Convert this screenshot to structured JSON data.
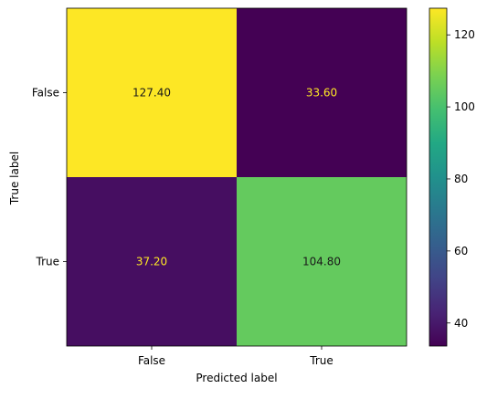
{
  "chart_data": {
    "type": "heatmap",
    "title": "",
    "xlabel": "Predicted label",
    "ylabel": "True label",
    "x_categories": [
      "False",
      "True"
    ],
    "y_categories": [
      "False",
      "True"
    ],
    "values": [
      [
        127.4,
        33.6
      ],
      [
        37.2,
        104.8
      ]
    ],
    "value_labels": [
      [
        "127.40",
        "33.60"
      ],
      [
        "37.20",
        "104.80"
      ]
    ],
    "colormap": "viridis",
    "colorbar": {
      "range": [
        33.6,
        127.4
      ],
      "ticks": [
        40,
        60,
        80,
        100,
        120
      ]
    },
    "grid": false,
    "text_colors": {
      "on_dark": "#fde725",
      "on_light": "#1a1a1a"
    }
  }
}
